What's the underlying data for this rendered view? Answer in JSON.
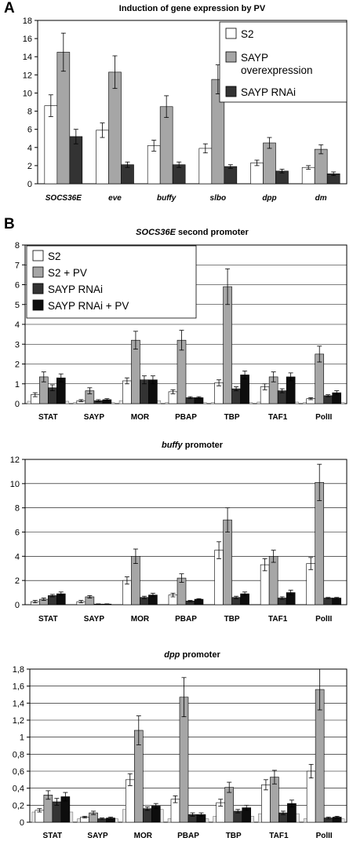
{
  "panels": [
    {
      "letter": "A"
    },
    {
      "letter": "B"
    }
  ],
  "colors": {
    "S2": "#ffffff",
    "SAYP overexpression": "#a6a6a6",
    "SAYP RNAi": "#333333",
    "S2 + PV": "#a6a6a6",
    "SAYP RNAi + PV": "#0d0d0d",
    "background": "#e6e6e6"
  },
  "chart_data": [
    {
      "type": "bar",
      "title": "Induction of gene expression by PV",
      "categories": [
        "SOCS36E",
        "eve",
        "buffy",
        "slbo",
        "dpp",
        "dm"
      ],
      "ylim": [
        0,
        18
      ],
      "yticks": [
        "0",
        "2",
        "4",
        "6",
        "8",
        "10",
        "12",
        "14",
        "16",
        "18"
      ],
      "series": [
        {
          "name": "S2",
          "values": [
            8.6,
            5.9,
            4.2,
            3.9,
            2.3,
            1.8
          ],
          "errors": [
            1.2,
            0.8,
            0.6,
            0.5,
            0.3,
            0.2
          ]
        },
        {
          "name": "SAYP overexpression",
          "values": [
            14.5,
            12.3,
            8.5,
            11.5,
            4.5,
            3.8
          ],
          "errors": [
            2.1,
            1.8,
            1.2,
            1.6,
            0.6,
            0.5
          ]
        },
        {
          "name": "SAYP RNAi",
          "values": [
            5.2,
            2.1,
            2.1,
            1.9,
            1.4,
            1.1
          ],
          "errors": [
            0.8,
            0.3,
            0.3,
            0.2,
            0.2,
            0.2
          ]
        }
      ],
      "legend": "top-right",
      "grid": false
    },
    {
      "type": "bar",
      "title": "SOCS36E second promoter",
      "categories": [
        "STAT",
        "SAYP",
        "MOR",
        "PBAP",
        "TBP",
        "TAF1",
        "PolII"
      ],
      "ylim": [
        0,
        8
      ],
      "yticks": [
        "0",
        "1",
        "2",
        "3",
        "4",
        "5",
        "6",
        "7",
        "8"
      ],
      "background_values": [
        0.12,
        0.05,
        0.15,
        0.05,
        0.05,
        0.08,
        0.05
      ],
      "series": [
        {
          "name": "S2",
          "values": [
            0.45,
            0.15,
            1.15,
            0.6,
            1.05,
            0.85,
            0.25
          ],
          "errors": [
            0.1,
            0.05,
            0.15,
            0.1,
            0.15,
            0.15,
            0.05
          ]
        },
        {
          "name": "S2 + PV",
          "values": [
            1.35,
            0.65,
            3.2,
            3.2,
            5.9,
            1.35,
            2.5
          ],
          "errors": [
            0.25,
            0.15,
            0.45,
            0.5,
            0.9,
            0.25,
            0.4
          ]
        },
        {
          "name": "SAYP RNAi",
          "values": [
            0.8,
            0.15,
            1.2,
            0.3,
            0.75,
            0.65,
            0.4
          ],
          "errors": [
            0.15,
            0.05,
            0.2,
            0.05,
            0.1,
            0.1,
            0.05
          ]
        },
        {
          "name": "SAYP RNAi + PV",
          "values": [
            1.3,
            0.2,
            1.2,
            0.3,
            1.45,
            1.35,
            0.55
          ],
          "errors": [
            0.2,
            0.05,
            0.2,
            0.05,
            0.2,
            0.2,
            0.1
          ]
        }
      ],
      "legend": "top-left",
      "grid": true
    },
    {
      "type": "bar",
      "title": "buffy promoter",
      "categories": [
        "STAT",
        "SAYP",
        "MOR",
        "PBAP",
        "TBP",
        "TAF1",
        "PolII"
      ],
      "ylim": [
        0,
        12
      ],
      "yticks": [
        "0",
        "2",
        "4",
        "6",
        "8",
        "10",
        "12"
      ],
      "background_values": [
        0,
        0,
        0,
        0,
        0,
        0,
        0
      ],
      "series": [
        {
          "name": "S2",
          "values": [
            0.25,
            0.25,
            2.0,
            0.8,
            4.5,
            3.3,
            3.4
          ],
          "errors": [
            0.1,
            0.1,
            0.3,
            0.15,
            0.7,
            0.5,
            0.5
          ]
        },
        {
          "name": "S2 + PV",
          "values": [
            0.45,
            0.65,
            4.0,
            2.2,
            7.0,
            4.0,
            10.1
          ],
          "errors": [
            0.1,
            0.1,
            0.6,
            0.35,
            1.0,
            0.5,
            1.5
          ]
        },
        {
          "name": "SAYP RNAi",
          "values": [
            0.75,
            0.05,
            0.6,
            0.3,
            0.6,
            0.55,
            0.55
          ],
          "errors": [
            0.1,
            0.02,
            0.1,
            0.05,
            0.1,
            0.1,
            0.05
          ]
        },
        {
          "name": "SAYP RNAi + PV",
          "values": [
            0.9,
            0.05,
            0.8,
            0.45,
            0.9,
            1.0,
            0.55
          ],
          "errors": [
            0.15,
            0.02,
            0.15,
            0.05,
            0.15,
            0.2,
            0.05
          ]
        }
      ],
      "grid": true
    },
    {
      "type": "bar",
      "title": "dpp promoter",
      "categories": [
        "STAT",
        "SAYP",
        "MOR",
        "PBAP",
        "TBP",
        "TAF1",
        "PolII"
      ],
      "ylim": [
        0,
        1.8
      ],
      "yticks": [
        "0",
        "0,2",
        "0,4",
        "0,6",
        "0,8",
        "1",
        "1,2",
        "1,4",
        "1,6",
        "1,8"
      ],
      "background_values": [
        0.12,
        0.04,
        0.15,
        0.04,
        0.07,
        0.1,
        0.04
      ],
      "series": [
        {
          "name": "S2",
          "values": [
            0.14,
            0.06,
            0.5,
            0.27,
            0.23,
            0.44,
            0.6
          ],
          "errors": [
            0.02,
            0.01,
            0.07,
            0.04,
            0.04,
            0.06,
            0.08
          ]
        },
        {
          "name": "S2 + PV",
          "values": [
            0.32,
            0.11,
            1.08,
            1.47,
            0.41,
            0.53,
            1.56
          ],
          "errors": [
            0.05,
            0.02,
            0.17,
            0.23,
            0.06,
            0.08,
            0.24
          ]
        },
        {
          "name": "SAYP RNAi",
          "values": [
            0.24,
            0.04,
            0.16,
            0.09,
            0.13,
            0.11,
            0.05
          ],
          "errors": [
            0.04,
            0.01,
            0.02,
            0.02,
            0.02,
            0.02,
            0.01
          ]
        },
        {
          "name": "SAYP RNAi + PV",
          "values": [
            0.3,
            0.05,
            0.19,
            0.09,
            0.17,
            0.22,
            0.06
          ],
          "errors": [
            0.05,
            0.01,
            0.03,
            0.02,
            0.03,
            0.04,
            0.01
          ]
        }
      ],
      "grid": true
    }
  ]
}
